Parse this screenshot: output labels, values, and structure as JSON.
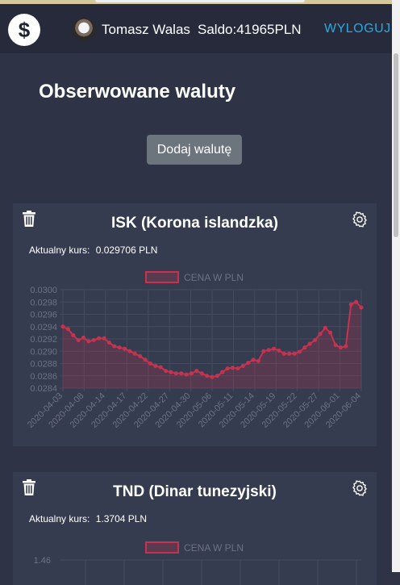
{
  "nav": {
    "logo_symbol": "$",
    "user_name": "Tomasz Walas",
    "balance": "Saldo:41965PLN",
    "logout_label": "WYLOGUJ"
  },
  "page": {
    "title": "Obserwowane waluty",
    "add_button_label": "Dodaj walutę"
  },
  "colors": {
    "accent_logout": "#2aa9e0",
    "chart_line": "#c8324e",
    "chart_fill": "rgba(200,50,78,0.22)"
  },
  "cards": [
    {
      "title": "ISK (Korona islandzka)",
      "rate_label": "Aktualny kurs:",
      "rate_value": "0.029706 PLN",
      "delete_icon": "trash-icon",
      "settings_icon": "gear-icon"
    },
    {
      "title": "TND (Dinar tunezyjski)",
      "rate_label": "Aktualny kurs:",
      "rate_value": "1.3704 PLN",
      "delete_icon": "trash-icon",
      "settings_icon": "gear-icon"
    }
  ],
  "chart_data": [
    {
      "type": "line",
      "legend": "CENA W PLN",
      "legend_position": "top",
      "grid": true,
      "ylim": [
        0.0284,
        0.03
      ],
      "yticks": [
        "0.0300",
        "0.0298",
        "0.0296",
        "0.0294",
        "0.0292",
        "0.0290",
        "0.0288",
        "0.0286",
        "0.0284"
      ],
      "xticks": [
        "2020-04-03",
        "2020-04-08",
        "2020-04-14",
        "2020-04-17",
        "2020-04-22",
        "2020-04-27",
        "2020-04-30",
        "2020-05-06",
        "2020-05-11",
        "2020-05-14",
        "2020-05-19",
        "2020-05-22",
        "2020-05-27",
        "2020-06-01",
        "2020-06-04"
      ],
      "values": [
        0.0294,
        0.02936,
        0.02926,
        0.02918,
        0.02922,
        0.02916,
        0.02918,
        0.02921,
        0.02921,
        0.02914,
        0.02908,
        0.02906,
        0.02904,
        0.029,
        0.02896,
        0.02892,
        0.02886,
        0.0288,
        0.02876,
        0.02874,
        0.02868,
        0.02866,
        0.02864,
        0.02864,
        0.02862,
        0.02864,
        0.02868,
        0.02864,
        0.0286,
        0.02858,
        0.0286,
        0.02866,
        0.02872,
        0.02873,
        0.02872,
        0.02876,
        0.02881,
        0.02886,
        0.02884,
        0.029,
        0.02902,
        0.02904,
        0.02901,
        0.02896,
        0.02896,
        0.02896,
        0.02899,
        0.02906,
        0.02912,
        0.02918,
        0.02928,
        0.02938,
        0.0293,
        0.0291,
        0.02906,
        0.02908,
        0.02976,
        0.0298,
        0.02971
      ]
    },
    {
      "type": "line",
      "legend": "CENA W PLN",
      "legend_position": "top",
      "grid": true,
      "yticks": [
        "1.46"
      ]
    }
  ]
}
